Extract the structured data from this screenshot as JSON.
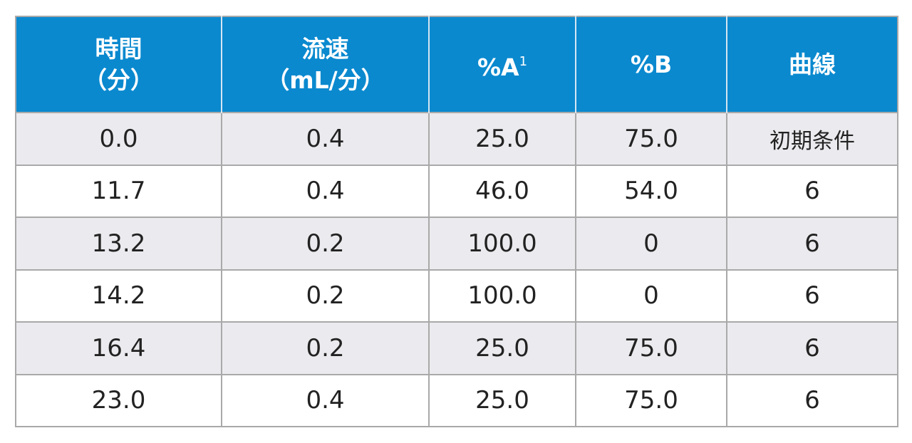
{
  "table": {
    "headers": [
      {
        "lines": [
          "時間",
          "（分）"
        ]
      },
      {
        "lines": [
          "流速",
          "（mL/分）"
        ]
      },
      {
        "lines": [
          "%A"
        ],
        "superscript": "1"
      },
      {
        "lines": [
          "%B"
        ]
      },
      {
        "lines": [
          "曲線"
        ]
      }
    ],
    "rows": [
      [
        "0.0",
        "0.4",
        "25.0",
        "75.0",
        "初期条件"
      ],
      [
        "11.7",
        "0.4",
        "46.0",
        "54.0",
        "6"
      ],
      [
        "13.2",
        "0.2",
        "100.0",
        "0",
        "6"
      ],
      [
        "14.2",
        "0.2",
        "100.0",
        "0",
        "6"
      ],
      [
        "16.4",
        "0.2",
        "25.0",
        "75.0",
        "6"
      ],
      [
        "23.0",
        "0.4",
        "25.0",
        "75.0",
        "6"
      ]
    ]
  }
}
